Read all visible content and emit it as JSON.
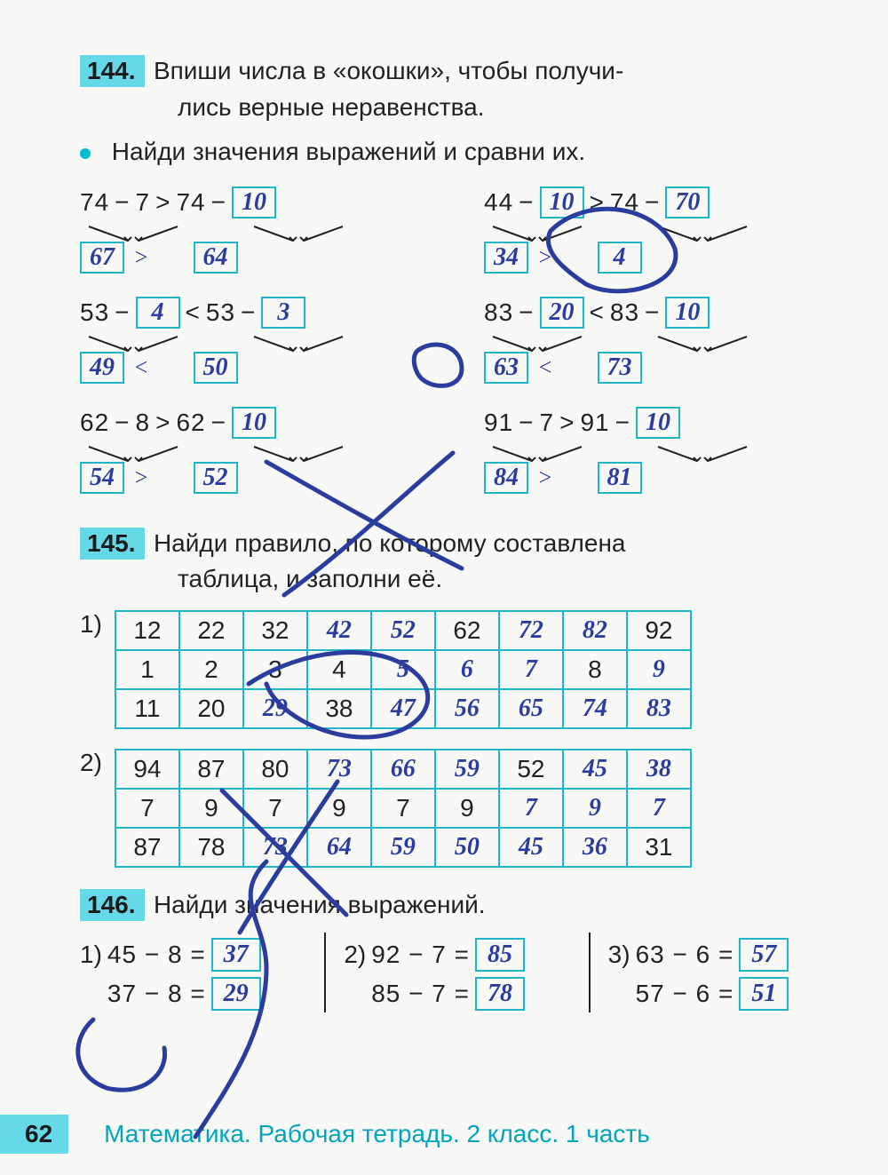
{
  "page_number": "62",
  "footer": "Математика. Рабочая тетрадь. 2 класс. 1 часть",
  "tasks": {
    "t144": {
      "num": "144.",
      "text_line1": "Впиши числа в «окошки», чтобы получи-",
      "text_line2": "лись верные неравенства.",
      "sub": "Найди значения выражений и сравни их.",
      "rows": [
        {
          "left": {
            "a": "74",
            "op": "−",
            "b": "7",
            "cmp": ">",
            "c": "74",
            "d": "10",
            "r1": "67",
            "rcmp": ">",
            "r2": "64"
          },
          "right": {
            "a": "44",
            "op": "−",
            "b": "10",
            "cmp": ">",
            "c": "74",
            "d": "70",
            "r1": "34",
            "rcmp": ">",
            "r2": "4"
          }
        },
        {
          "left": {
            "a": "53",
            "op": "−",
            "b": "4",
            "cmp": "<",
            "c": "53",
            "d": "3",
            "r1": "49",
            "rcmp": "<",
            "r2": "50"
          },
          "right": {
            "a": "83",
            "op": "−",
            "b": "20",
            "cmp": "<",
            "c": "83",
            "d": "10",
            "r1": "63",
            "rcmp": "<",
            "r2": "73"
          }
        },
        {
          "left": {
            "a": "62",
            "op": "−",
            "b": "8",
            "cmp": ">",
            "c": "62",
            "d": "10",
            "r1": "54",
            "rcmp": ">",
            "r2": "52"
          },
          "right": {
            "a": "91",
            "op": "−",
            "b": "7",
            "cmp": ">",
            "c": "91",
            "d": "10",
            "r1": "84",
            "rcmp": ">",
            "r2": "81"
          }
        }
      ]
    },
    "t145": {
      "num": "145.",
      "text_line1": "Найди правило, по которому составлена",
      "text_line2": "таблица, и заполни её.",
      "tables": [
        {
          "idx": "1)",
          "rows": [
            [
              {
                "v": "12",
                "h": false
              },
              {
                "v": "22",
                "h": false
              },
              {
                "v": "32",
                "h": false
              },
              {
                "v": "42",
                "h": true
              },
              {
                "v": "52",
                "h": true
              },
              {
                "v": "62",
                "h": false
              },
              {
                "v": "72",
                "h": true
              },
              {
                "v": "82",
                "h": true
              },
              {
                "v": "92",
                "h": false
              }
            ],
            [
              {
                "v": "1",
                "h": false
              },
              {
                "v": "2",
                "h": false
              },
              {
                "v": "3",
                "h": false
              },
              {
                "v": "4",
                "h": false
              },
              {
                "v": "5",
                "h": true
              },
              {
                "v": "6",
                "h": true
              },
              {
                "v": "7",
                "h": true
              },
              {
                "v": "8",
                "h": false
              },
              {
                "v": "9",
                "h": true
              }
            ],
            [
              {
                "v": "11",
                "h": false
              },
              {
                "v": "20",
                "h": false
              },
              {
                "v": "29",
                "h": true
              },
              {
                "v": "38",
                "h": false
              },
              {
                "v": "47",
                "h": true
              },
              {
                "v": "56",
                "h": true
              },
              {
                "v": "65",
                "h": true
              },
              {
                "v": "74",
                "h": true
              },
              {
                "v": "83",
                "h": true
              }
            ]
          ]
        },
        {
          "idx": "2)",
          "rows": [
            [
              {
                "v": "94",
                "h": false
              },
              {
                "v": "87",
                "h": false
              },
              {
                "v": "80",
                "h": false
              },
              {
                "v": "73",
                "h": true
              },
              {
                "v": "66",
                "h": true
              },
              {
                "v": "59",
                "h": true
              },
              {
                "v": "52",
                "h": false
              },
              {
                "v": "45",
                "h": true
              },
              {
                "v": "38",
                "h": true
              }
            ],
            [
              {
                "v": "7",
                "h": false
              },
              {
                "v": "9",
                "h": false
              },
              {
                "v": "7",
                "h": false
              },
              {
                "v": "9",
                "h": false
              },
              {
                "v": "7",
                "h": false
              },
              {
                "v": "9",
                "h": false
              },
              {
                "v": "7",
                "h": true
              },
              {
                "v": "9",
                "h": true
              },
              {
                "v": "7",
                "h": true
              }
            ],
            [
              {
                "v": "87",
                "h": false
              },
              {
                "v": "78",
                "h": false
              },
              {
                "v": "73",
                "h": true
              },
              {
                "v": "64",
                "h": true
              },
              {
                "v": "59",
                "h": true
              },
              {
                "v": "50",
                "h": true
              },
              {
                "v": "45",
                "h": true
              },
              {
                "v": "36",
                "h": true
              },
              {
                "v": "31",
                "h": false
              }
            ]
          ]
        }
      ]
    },
    "t146": {
      "num": "146.",
      "text": "Найди значения выражений.",
      "cols": [
        {
          "idx": "1)",
          "items": [
            {
              "expr": "45 − 8 =",
              "ans": "37"
            },
            {
              "expr": "37 − 8 =",
              "ans": "29"
            }
          ]
        },
        {
          "idx": "2)",
          "items": [
            {
              "expr": "92 − 7 =",
              "ans": "85"
            },
            {
              "expr": "85 − 7 =",
              "ans": "78"
            }
          ]
        },
        {
          "idx": "3)",
          "items": [
            {
              "expr": "63 − 6 =",
              "ans": "57"
            },
            {
              "expr": "57 − 6 =",
              "ans": "51"
            }
          ]
        }
      ]
    }
  },
  "colors": {
    "accent": "#66d9e8",
    "box_border": "#1fb6c9",
    "hand": "#2a3d9e",
    "footer_text": "#00a4bd"
  }
}
